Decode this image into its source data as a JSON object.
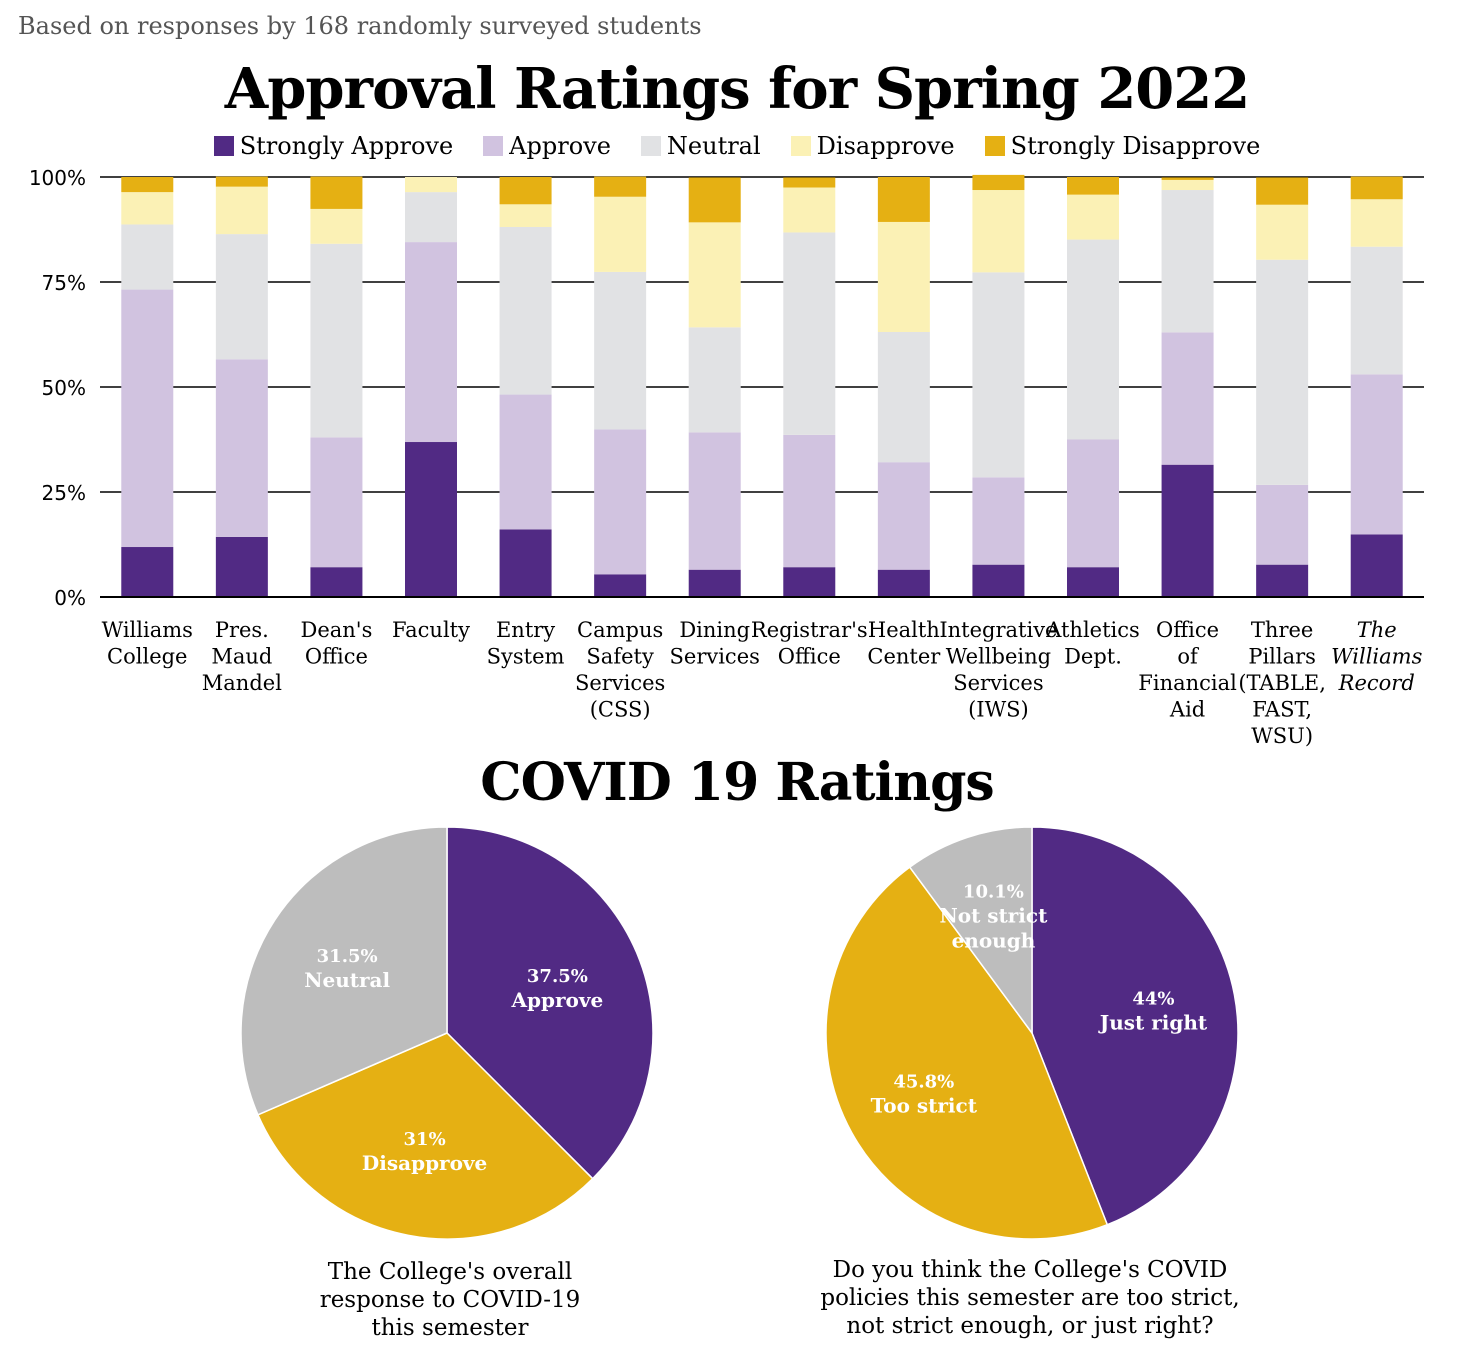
{
  "subtitle": "Based on responses by 168 randomly surveyed students",
  "colors": {
    "strongly_approve": "#512a84",
    "approve": "#d1c3e0",
    "neutral": "#e1e2e4",
    "disapprove": "#fbf1b5",
    "strongly_disapprove": "#e5b013",
    "pie_gray": "#bdbdbd"
  },
  "chart_data": [
    {
      "type": "bar",
      "stacked": true,
      "title": "Approval Ratings for Spring 2022",
      "legend_position": "top",
      "ylim": [
        0,
        100
      ],
      "yticks": [
        "0%",
        "25%",
        "50%",
        "75%",
        "100%"
      ],
      "categories": [
        "Williams\nCollege",
        "Pres.\nMaud\nMandel",
        "Dean's\nOffice",
        "Faculty",
        "Entry\nSystem",
        "Campus\nSafety\nServices\n(CSS)",
        "Dining\nServices",
        "Registrar's\nOffice",
        "Health\nCenter",
        "Integrative\nWellbeing\nServices\n(IWS)",
        "Athletics\nDept.",
        "Office\nof\nFinancial\nAid",
        "Three\nPillars\n(TABLE,\nFAST,\nWSU)",
        "The\nWilliams\nRecord"
      ],
      "series": [
        {
          "name": "Strongly Approve",
          "color_key": "strongly_approve",
          "values": [
            11.9,
            14.3,
            7.1,
            36.9,
            16.1,
            5.4,
            6.5,
            7.1,
            6.5,
            7.7,
            7.1,
            31.5,
            7.7,
            14.9
          ]
        },
        {
          "name": "Approve",
          "color_key": "approve",
          "values": [
            61.3,
            42.3,
            30.9,
            47.6,
            32.1,
            34.5,
            32.7,
            31.5,
            25.6,
            20.8,
            30.4,
            31.5,
            19.0,
            38.1
          ]
        },
        {
          "name": "Neutral",
          "color_key": "neutral",
          "values": [
            15.5,
            29.8,
            46.1,
            11.9,
            39.9,
            37.5,
            25.0,
            48.2,
            31.0,
            48.8,
            47.6,
            33.9,
            53.6,
            30.4
          ]
        },
        {
          "name": "Disapprove",
          "color_key": "disapprove",
          "values": [
            7.7,
            11.3,
            8.3,
            3.6,
            5.4,
            17.9,
            25.0,
            10.7,
            26.2,
            19.6,
            10.7,
            2.4,
            13.1,
            11.3
          ]
        },
        {
          "name": "Strongly Disapprove",
          "color_key": "strongly_disapprove",
          "values": [
            3.6,
            2.4,
            7.7,
            0.0,
            6.5,
            4.8,
            10.7,
            2.4,
            10.7,
            3.6,
            4.2,
            0.6,
            6.5,
            5.4
          ]
        }
      ]
    },
    {
      "type": "pie",
      "title": "COVID 19 Ratings",
      "caption": "The College's overall\nresponse to COVID-19\nthis semester",
      "slices": [
        {
          "name": "Approve",
          "percent_label": "37.5%",
          "value": 37.5,
          "color_key": "strongly_approve"
        },
        {
          "name": "Disapprove",
          "percent_label": "31%",
          "value": 31.0,
          "color_key": "strongly_disapprove"
        },
        {
          "name": "Neutral",
          "percent_label": "31.5%",
          "value": 31.5,
          "color_key": "pie_gray"
        }
      ]
    },
    {
      "type": "pie",
      "caption": "Do you think the College's COVID\npolicies this semester are too strict,\nnot strict enough, or just right?",
      "slices": [
        {
          "name": "Just right",
          "percent_label": "44%",
          "value": 44.0,
          "color_key": "strongly_approve"
        },
        {
          "name": "Too strict",
          "percent_label": "45.8%",
          "value": 45.8,
          "color_key": "strongly_disapprove"
        },
        {
          "name": "Not strict\nenough",
          "percent_label": "10.1%",
          "value": 10.1,
          "color_key": "pie_gray"
        }
      ]
    }
  ]
}
